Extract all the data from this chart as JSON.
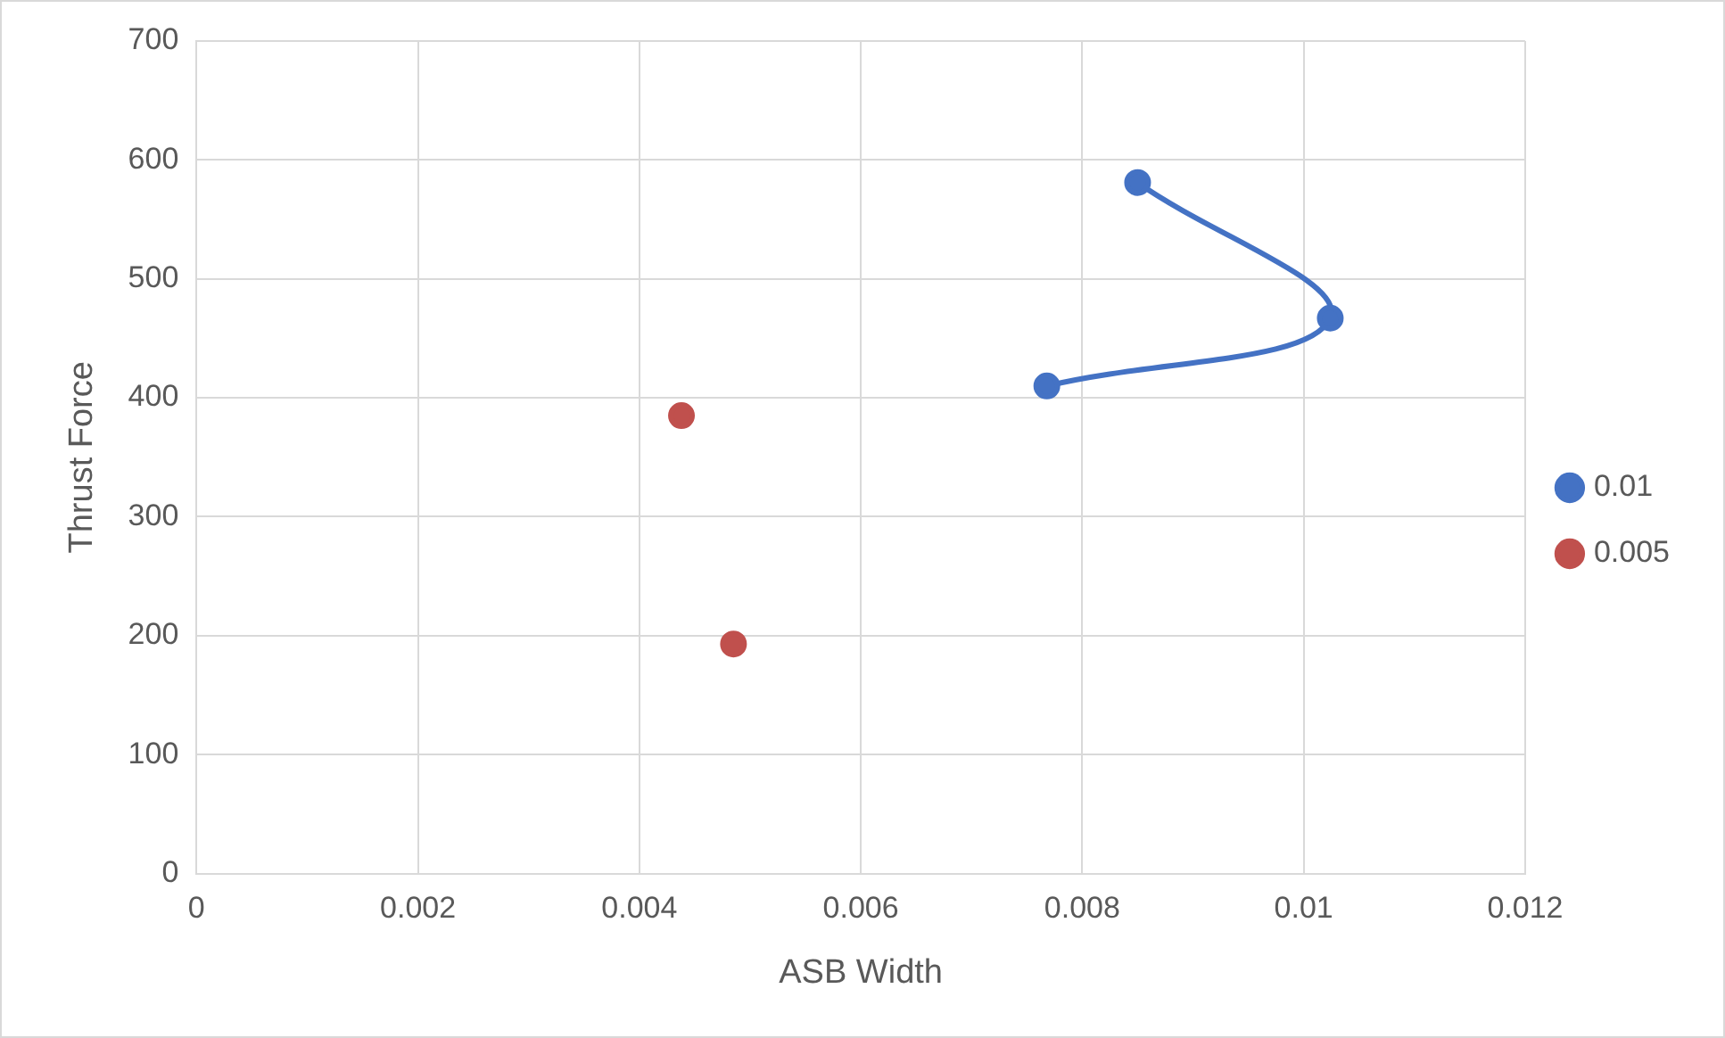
{
  "chart_data": {
    "type": "line",
    "xlabel": "ASB Width",
    "ylabel": "Thrust Force",
    "xlim": [
      0,
      0.012
    ],
    "xticks": [
      0,
      0.002,
      0.004,
      0.006,
      0.008,
      0.01,
      0.012
    ],
    "ylim": [
      0,
      700
    ],
    "yticks": [
      0,
      100,
      200,
      300,
      400,
      500,
      600,
      700
    ],
    "grid": true,
    "legend": "right",
    "marker": "circle",
    "series": [
      {
        "name": "0.01",
        "color": "#4472c4",
        "x": [
          0.0085,
          0.01024,
          0.00768
        ],
        "values": [
          581,
          467,
          410
        ]
      },
      {
        "name": "0.005",
        "type": "scatter",
        "color": "#c0504d",
        "x": [
          0.00438,
          0.00485
        ],
        "values": [
          385,
          193
        ]
      }
    ]
  }
}
